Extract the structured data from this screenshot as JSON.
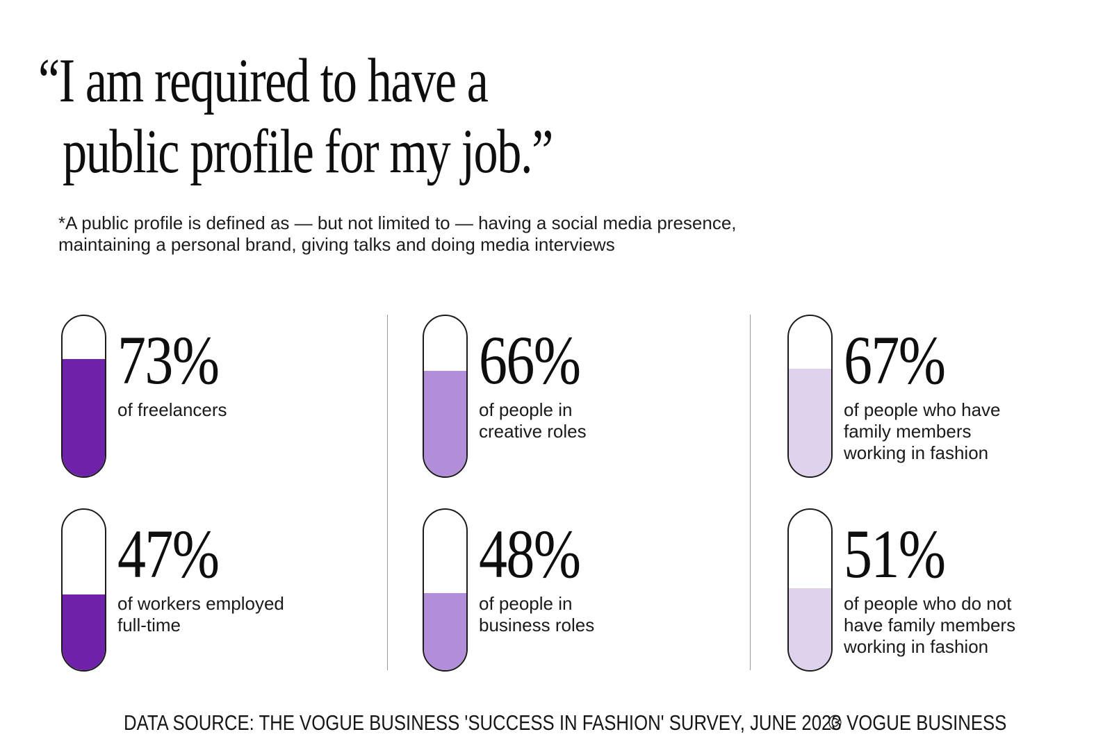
{
  "header": {
    "quote_line1": "“I am required to have a",
    "quote_line2": "public profile for my job.”",
    "footnote_line1": "*A public profile is defined as — but not limited to — having a social media presence,",
    "footnote_line2": "maintaining a personal brand, giving talks and doing media interviews"
  },
  "chart_data": {
    "type": "bar",
    "title": "“I am required to have a public profile for my job.”",
    "subtitle": "*A public profile is defined as — but not limited to — having a social media presence, maintaining a personal brand, giving talks and doing media interviews",
    "categories": [
      "of freelancers",
      "of people in creative roles",
      "of people who have family members working in fashion",
      "of workers employed full-time",
      "of people in business roles",
      "of people who do not have family members working in fashion"
    ],
    "values": [
      73,
      66,
      67,
      47,
      48,
      51
    ],
    "unit": "%",
    "ylim": [
      0,
      100
    ],
    "grid": false,
    "legend": "none",
    "layout": "2 rows x 3 columns of vertical pill gauges",
    "bar_colors": [
      "#6E21A9",
      "#B28DD8",
      "#DED2EC",
      "#6E21A9",
      "#B28DD8",
      "#DED2EC"
    ]
  },
  "stats": {
    "items": [
      {
        "value": 73,
        "value_label": "73%",
        "label": "of freelancers",
        "color": "#6E21A9"
      },
      {
        "value": 66,
        "value_label": "66%",
        "label": "of people in creative roles",
        "color": "#B28DD8"
      },
      {
        "value": 67,
        "value_label": "67%",
        "label": "of people who have family members working in fashion",
        "color": "#DED2EC"
      },
      {
        "value": 47,
        "value_label": "47%",
        "label": "of workers employed full-time",
        "color": "#6E21A9"
      },
      {
        "value": 48,
        "value_label": "48%",
        "label": "of people in business roles",
        "color": "#B28DD8"
      },
      {
        "value": 51,
        "value_label": "51%",
        "label": "of people who do not have family members working in fashion",
        "color": "#DED2EC"
      }
    ]
  },
  "footer": {
    "source": "DATA SOURCE: THE VOGUE BUSINESS 'SUCCESS IN FASHION' SURVEY, JUNE 2023",
    "copyright": "© VOGUE BUSINESS"
  },
  "colors": {
    "dark_purple": "#6E21A9",
    "medium_purple": "#B28DD8",
    "light_purple": "#DED2EC",
    "pill_outline": "#1a1a1a",
    "divider_gray": "#999999",
    "background": "#ffffff"
  }
}
